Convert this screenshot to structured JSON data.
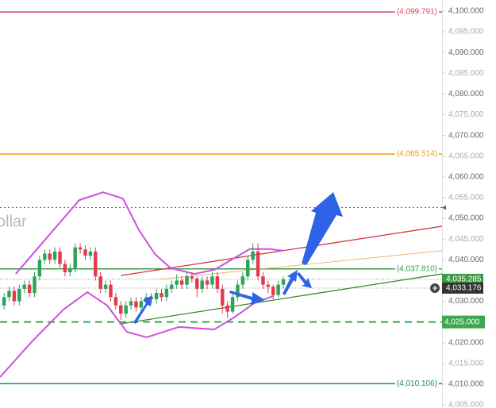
{
  "chart_data": {
    "type": "candlestick",
    "watermark": "ollar",
    "xlim": [
      -0.8,
      86.25
    ],
    "ylim": [
      4004.25,
      4102.68
    ],
    "yticks": [
      {
        "value": 4100,
        "label": "4,100.000"
      },
      {
        "value": 4095,
        "label": "4,095.000"
      },
      {
        "value": 4090,
        "label": "4,090.000"
      },
      {
        "value": 4085,
        "label": "4,085.000"
      },
      {
        "value": 4080,
        "label": "4,080.000"
      },
      {
        "value": 4075,
        "label": "4,075.000"
      },
      {
        "value": 4070,
        "label": "4,070.000"
      },
      {
        "value": 4065,
        "label": "4,065.000"
      },
      {
        "value": 4060,
        "label": "4,060.000"
      },
      {
        "value": 4055,
        "label": "4,055.000"
      },
      {
        "value": 4050,
        "label": "4,050.000"
      },
      {
        "value": 4045,
        "label": "4,045.000"
      },
      {
        "value": 4040,
        "label": "4,040.000"
      },
      {
        "value": 4030,
        "label": "4,030.000"
      },
      {
        "value": 4020,
        "label": "4,020.000"
      },
      {
        "value": 4015,
        "label": "4,015.000"
      },
      {
        "value": 4010,
        "label": "4,010.000"
      },
      {
        "value": 4005,
        "label": "4,005.000"
      }
    ],
    "up_color": "#2ea35a",
    "down_color": "#e23b4e",
    "open": [
      4029,
      4031,
      4032.5,
      4030,
      4033,
      4034,
      4032,
      4036,
      4040,
      4041.5,
      4040,
      4042,
      4039,
      4037,
      4038,
      4043,
      4042.5,
      4041,
      4042,
      4036,
      4033,
      4034,
      4031,
      4029,
      4027,
      4029,
      4030,
      4028.5,
      4030,
      4031,
      4030.5,
      4032,
      4031,
      4033,
      4034,
      4035,
      4034,
      4036,
      4035.5,
      4033,
      4035,
      4034,
      4036,
      4033,
      4029,
      4027.5,
      4031,
      4034,
      4036,
      4040,
      4042,
      4036,
      4034,
      4033.5,
      4031.5,
      4034
    ],
    "close": [
      4031,
      4032.5,
      4030,
      4033,
      4034,
      4032,
      4036,
      4040,
      4041.5,
      4040,
      4042,
      4039,
      4037,
      4038,
      4043,
      4042.5,
      4041,
      4042,
      4036,
      4033,
      4034,
      4031,
      4029,
      4027,
      4029,
      4030,
      4028.5,
      4030,
      4031,
      4030.5,
      4032,
      4031,
      4033,
      4034,
      4035,
      4034,
      4036,
      4035.5,
      4033,
      4035,
      4034,
      4036,
      4033,
      4029,
      4027.5,
      4031,
      4034,
      4036,
      4040,
      4042,
      4036,
      4034,
      4033.5,
      4031.5,
      4034,
      4035.3
    ],
    "high": [
      4032,
      4033.5,
      4033.5,
      4034,
      4035,
      4035,
      4037,
      4041,
      4042.5,
      4042.5,
      4043,
      4043,
      4040,
      4039,
      4044,
      4044,
      4043.5,
      4043,
      4043,
      4037,
      4035,
      4035,
      4032,
      4030,
      4030,
      4031,
      4031,
      4031,
      4032,
      4032,
      4033,
      4033,
      4034,
      4035,
      4036.5,
      4036,
      4037,
      4037,
      4036,
      4036,
      4036,
      4037,
      4037,
      4034,
      4030,
      4032,
      4035,
      4037,
      4041,
      4044,
      4044,
      4037,
      4035,
      4034,
      4035,
      4036
    ],
    "low": [
      4028,
      4030,
      4029,
      4029,
      4032,
      4031,
      4031,
      4035,
      4039,
      4039,
      4039,
      4038,
      4036,
      4036,
      4037,
      4041.5,
      4040,
      4040,
      4035,
      4032,
      4032,
      4030,
      4028,
      4025.5,
      4026,
      4028,
      4027.5,
      4027.5,
      4029,
      4029.5,
      4029.5,
      4030,
      4030,
      4032,
      4033,
      4033,
      4033,
      4034.5,
      4031,
      4032,
      4033,
      4033,
      4032,
      4027,
      4026,
      4027,
      4030,
      4033,
      4035,
      4039,
      4035,
      4033,
      4032,
      4030.5,
      4031,
      4033
    ],
    "bands": {
      "color": "#cf4fdf",
      "upper": {
        "x": [
          2.3,
          7,
          11.7,
          14.8,
          19.5,
          23.4,
          26.6,
          29.7,
          32.8,
          37.5,
          41.4,
          45.3,
          48.4,
          52.3,
          55
        ],
        "values": [
          4036.6,
          4043.3,
          4050,
          4054.4,
          4056.3,
          4054.8,
          4047.1,
          4041.4,
          4038,
          4036.6,
          4037.6,
          4040.4,
          4042.6,
          4042.6,
          4042.2
        ]
      },
      "lower": {
        "x": [
          -0.8,
          5.5,
          11.7,
          16.4,
          20.3,
          24.2,
          28.1,
          34.4,
          41.4,
          45.3,
          49.2,
          53.1
        ],
        "values": [
          4011.7,
          4020.3,
          4028,
          4032.2,
          4029,
          4022.6,
          4021.3,
          4023.8,
          4023.2,
          4026.1,
          4029.5,
          4031.3
        ]
      }
    },
    "trendlines": [
      {
        "color": "#d8323e",
        "x": [
          23,
          86.25
        ],
        "values": [
          4036.2,
          4048.1
        ]
      },
      {
        "color": "#3a8a2a",
        "x": [
          22.7,
          86.25
        ],
        "values": [
          4024.5,
          4036.6
        ]
      },
      {
        "color": "#e8a850",
        "x": [
          30.5,
          86.25
        ],
        "values": [
          4035.3,
          4042.2
        ]
      }
    ],
    "levels": [
      {
        "value": 4099.791,
        "label": "(4,099.791)",
        "color": "#d9485f"
      },
      {
        "value": 4065.514,
        "label": "(4,065.514)",
        "color": "#e0a020"
      },
      {
        "value": 4037.81,
        "label": "(4,037.810)",
        "color": "#3c9c45"
      },
      {
        "value": 4010.106,
        "label": "(4,010.106)",
        "color": "#1e8a6a"
      }
    ],
    "dashed_level": {
      "value": 4025,
      "label": "4,025.000",
      "color": "#3fa64f"
    },
    "marker_line": {
      "value": 4052.6,
      "color": "#55608a"
    },
    "price_labels": [
      {
        "value": 4035.285,
        "label": "4,035.285",
        "color": "#3c9c45"
      },
      {
        "value": 4033.176,
        "label": "4,033.176",
        "color": "#333333"
      }
    ]
  }
}
